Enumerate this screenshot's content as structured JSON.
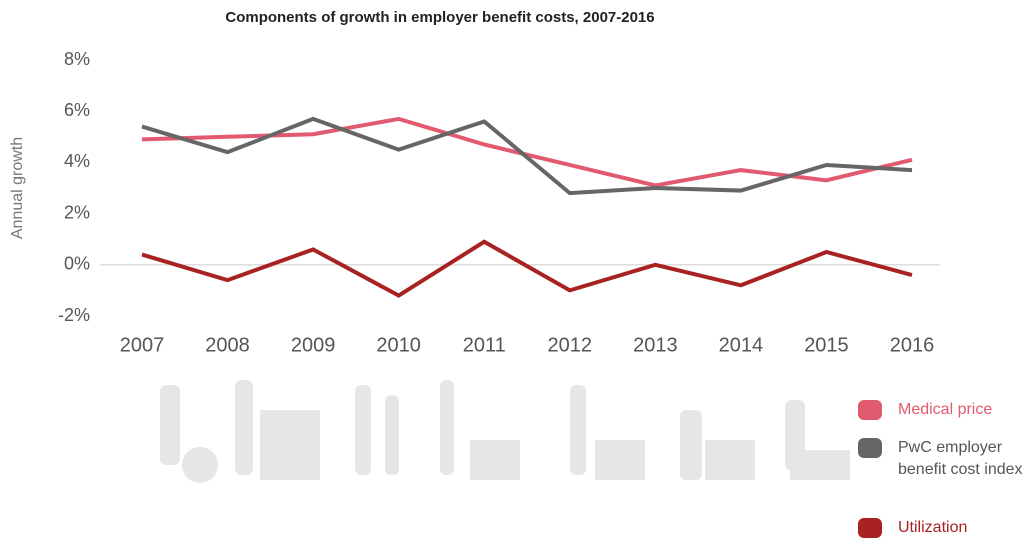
{
  "chart_data": {
    "type": "line",
    "title": "Components of growth in employer benefit costs, 2007-2016",
    "y_label": "Annual growth",
    "categories": [
      "2007",
      "2008",
      "2009",
      "2010",
      "2011",
      "2012",
      "2013",
      "2014",
      "2015",
      "2016"
    ],
    "series": [
      {
        "name": "Medical price",
        "color": "#e25a6f",
        "values": [
          4.9,
          5.0,
          5.1,
          5.7,
          4.7,
          3.9,
          3.1,
          3.7,
          3.3,
          4.1
        ]
      },
      {
        "name": "PwC employer benefit cost index",
        "color": "#666666",
        "values": [
          5.4,
          4.4,
          5.7,
          4.5,
          5.6,
          2.8,
          3.0,
          2.9,
          3.9,
          3.7
        ]
      },
      {
        "name": "Utilization",
        "color": "#a82222",
        "values": [
          0.4,
          -0.6,
          0.6,
          -1.2,
          0.9,
          -1.0,
          0.0,
          -0.8,
          0.5,
          -0.4
        ]
      }
    ],
    "ylim": [
      -2,
      8
    ],
    "yticks": [
      {
        "value": -2,
        "label": "-2%"
      },
      {
        "value": 0,
        "label": "0%"
      },
      {
        "value": 2,
        "label": "2%"
      },
      {
        "value": 4,
        "label": "4%"
      },
      {
        "value": 6,
        "label": "6%"
      },
      {
        "value": 8,
        "label": "8%"
      }
    ]
  }
}
